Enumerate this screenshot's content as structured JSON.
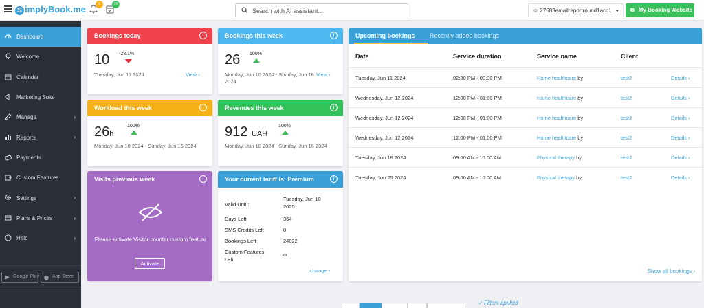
{
  "header": {
    "logo_text": "implyBook.me",
    "logo_letter": "S",
    "notifications_badge": "5",
    "tasks_badge": "20",
    "search_placeholder": "Search with AI assistant...",
    "account_name": "27583emailreportround1acc1",
    "booking_site_label": "My Booking Website"
  },
  "sidebar": {
    "items": [
      {
        "label": "Dashboard",
        "icon": "dashboard-icon",
        "active": true
      },
      {
        "label": "Welcome",
        "icon": "lightbulb-icon"
      },
      {
        "label": "Calendar",
        "icon": "calendar-icon"
      },
      {
        "label": "Marketing Suite",
        "icon": "megaphone-icon"
      },
      {
        "label": "Manage",
        "icon": "pencil-icon",
        "has_children": true
      },
      {
        "label": "Reports",
        "icon": "bar-chart-icon",
        "has_children": true
      },
      {
        "label": "Payments",
        "icon": "payment-icon"
      },
      {
        "label": "Custom Features",
        "icon": "puzzle-icon"
      },
      {
        "label": "Settings",
        "icon": "gear-icon",
        "has_children": true
      },
      {
        "label": "Plans & Prices",
        "icon": "wallet-icon",
        "has_children": true
      },
      {
        "label": "Help",
        "icon": "help-icon",
        "has_children": true
      }
    ],
    "stores": [
      "Google Play",
      "App Store"
    ]
  },
  "cards": {
    "bookings_today": {
      "title": "Bookings today",
      "value": "10",
      "change": "-23.1%",
      "date": "Tuesday, Jun 11 2024",
      "link": "View",
      "color": "#f0424c"
    },
    "bookings_week": {
      "title": "Bookings this week",
      "value": "26",
      "change": "100%",
      "date": "Monday, Jun 10 2024 - Sunday, Jun 16 2024",
      "link": "View",
      "color": "#4db8ef"
    },
    "workload_week": {
      "title": "Workload this week",
      "value": "26",
      "unit": "h",
      "change": "100%",
      "date": "Monday, Jun 10 2024 - Sunday, Jun 16 2024",
      "color": "#f7b21a"
    },
    "revenues_week": {
      "title": "Revenues this week",
      "value": "912",
      "unit": "UAH",
      "change": "100%",
      "date": "Monday, Jun 10 2024 - Sunday, Jun 16 2024",
      "color": "#33c15a"
    },
    "visits": {
      "title": "Visits previous week",
      "message": "Please activate Visitor counter custom feature",
      "button": "Activate",
      "color": "#a56cc6"
    },
    "tariff": {
      "title": "Your current tariff is: Premium",
      "rows": [
        {
          "label": "Valid Until:",
          "value": "Tuesday, Jun 10 2025"
        },
        {
          "label": "Days Left",
          "value": "364"
        },
        {
          "label": "SMS Credits Left",
          "value": "0"
        },
        {
          "label": "Bookings Left",
          "value": "24022"
        },
        {
          "label": "Custom Features Left",
          "value": "∞"
        }
      ],
      "link": "change",
      "color": "#3aa0d8"
    }
  },
  "bookings_panel": {
    "tabs": [
      "Upcoming bookings",
      "Recently added bookings"
    ],
    "columns": [
      "Date",
      "Service duration",
      "Service name",
      "Client"
    ],
    "rows": [
      {
        "date": "Tuesday, Jun 11 2024",
        "duration": "02:30 PM - 03:30 PM",
        "service": "Home healthcare",
        "by": "by",
        "client": "test2",
        "details": "Details"
      },
      {
        "date": "Wednesday, Jun 12 2024",
        "duration": "12:00 PM - 01:00 PM",
        "service": "Home healthcare",
        "by": "by",
        "client": "test2",
        "details": "Details"
      },
      {
        "date": "Wednesday, Jun 12 2024",
        "duration": "12:00 PM - 01:00 PM",
        "service": "Home healthcare",
        "by": "by",
        "client": "test2",
        "details": "Details"
      },
      {
        "date": "Wednesday, Jun 12 2024",
        "duration": "12:00 PM - 01:00 PM",
        "service": "Home healthcare",
        "by": "by",
        "client": "test2",
        "details": "Details"
      },
      {
        "date": "Tuesday, Jun 18 2024",
        "duration": "09:00 AM - 10:00 AM",
        "service": "Physical therapy",
        "by": "by",
        "client": "test2",
        "details": "Details"
      },
      {
        "date": "Tuesday, Jun 25 2024",
        "duration": "09:00 AM - 10:00 AM",
        "service": "Physical therapy",
        "by": "by",
        "client": "test2",
        "details": "Details"
      }
    ],
    "show_all": "Show all bookings"
  },
  "footer": {
    "filters_label": "Filters applied"
  }
}
